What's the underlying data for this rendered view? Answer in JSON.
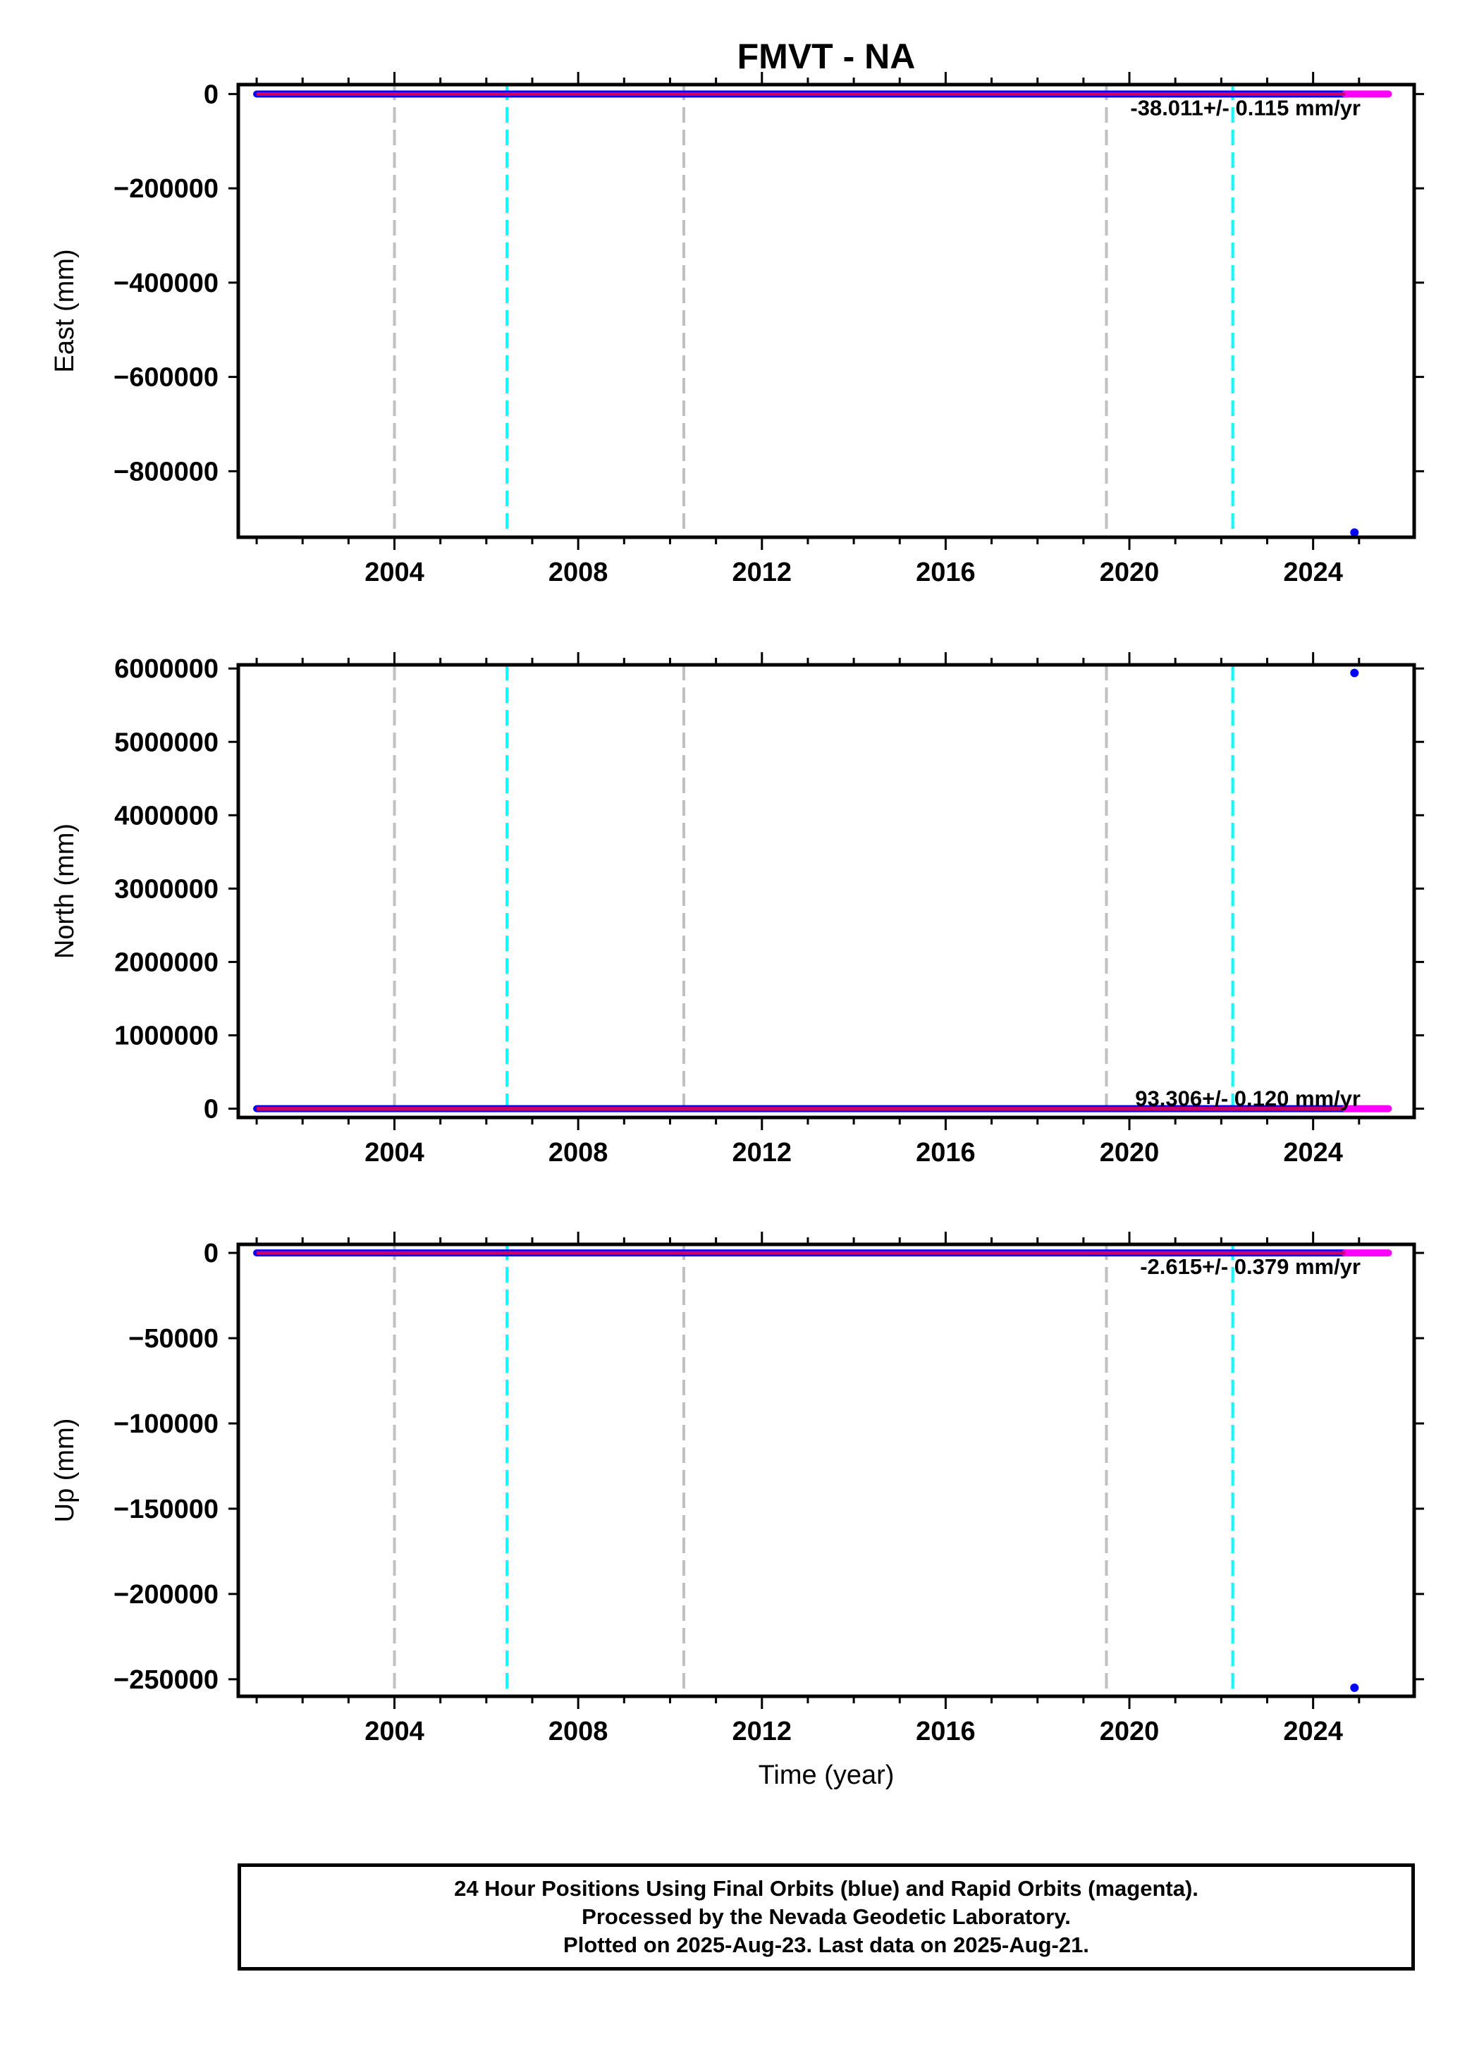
{
  "title": "FMVT - NA",
  "colors": {
    "final_orbits": "#0000ff",
    "rapid_orbits": "#ff00ff",
    "overlap": "#cc0066",
    "equipment_change": "#c0c0c0",
    "event": "#00ffff"
  },
  "chart_data": [
    {
      "type": "scatter",
      "panel": "east",
      "ylabel": "East (mm)",
      "xlabel": "",
      "rate_text": "-38.011+/- 0.115 mm/yr",
      "ylim": [
        -940000,
        20000
      ],
      "xlim": [
        2000.6,
        2026.2
      ],
      "yticks": [
        0,
        -200000,
        -400000,
        -600000,
        -800000
      ],
      "ytick_labels": [
        "0",
        "−200000",
        "−400000",
        "−600000",
        "−800000"
      ],
      "xticks": [
        2004,
        2008,
        2012,
        2016,
        2020,
        2024
      ],
      "series": [
        {
          "color": "final_orbits",
          "x_range": [
            2001.0,
            2024.7
          ],
          "y": 0
        },
        {
          "color": "rapid_orbits",
          "x_range": [
            2024.7,
            2025.64
          ],
          "y": 0
        }
      ],
      "outliers": [
        {
          "x": 2024.9,
          "y": -930000
        }
      ],
      "grey_lines": [
        2004.0,
        2010.3,
        2019.5
      ],
      "cyan_lines": [
        2006.45,
        2022.25
      ]
    },
    {
      "type": "scatter",
      "panel": "north",
      "ylabel": "North (mm)",
      "xlabel": "",
      "rate_text": "93.306+/- 0.120 mm/yr",
      "ylim": [
        -120000,
        6050000
      ],
      "xlim": [
        2000.6,
        2026.2
      ],
      "yticks": [
        0,
        1000000,
        2000000,
        3000000,
        4000000,
        5000000,
        6000000
      ],
      "ytick_labels": [
        "0",
        "1000000",
        "2000000",
        "3000000",
        "4000000",
        "5000000",
        "6000000"
      ],
      "xticks": [
        2004,
        2008,
        2012,
        2016,
        2020,
        2024
      ],
      "series": [
        {
          "color": "final_orbits",
          "x_range": [
            2001.0,
            2024.7
          ],
          "y": 0
        },
        {
          "color": "rapid_orbits",
          "x_range": [
            2024.7,
            2025.64
          ],
          "y": 0
        }
      ],
      "outliers": [
        {
          "x": 2024.9,
          "y": 5940000
        }
      ],
      "grey_lines": [
        2004.0,
        2010.3,
        2019.5
      ],
      "cyan_lines": [
        2006.45,
        2022.25
      ]
    },
    {
      "type": "scatter",
      "panel": "up",
      "ylabel": "Up (mm)",
      "xlabel": "Time (year)",
      "rate_text": "-2.615+/- 0.379 mm/yr",
      "ylim": [
        -260000,
        5000
      ],
      "xlim": [
        2000.6,
        2026.2
      ],
      "yticks": [
        0,
        -50000,
        -100000,
        -150000,
        -200000,
        -250000
      ],
      "ytick_labels": [
        "0",
        "−50000",
        "−100000",
        "−150000",
        "−200000",
        "−250000"
      ],
      "xticks": [
        2004,
        2008,
        2012,
        2016,
        2020,
        2024
      ],
      "series": [
        {
          "color": "final_orbits",
          "x_range": [
            2001.0,
            2024.7
          ],
          "y": 0
        },
        {
          "color": "rapid_orbits",
          "x_range": [
            2024.7,
            2025.64
          ],
          "y": 0
        }
      ],
      "outliers": [
        {
          "x": 2024.9,
          "y": -255000
        }
      ],
      "grey_lines": [
        2004.0,
        2010.3,
        2019.5
      ],
      "cyan_lines": [
        2006.45,
        2022.25
      ]
    }
  ],
  "footer": {
    "line1": "24 Hour Positions Using Final Orbits (blue) and Rapid Orbits (magenta).",
    "line2": "Processed by the Nevada Geodetic Laboratory.",
    "line3": "Plotted on 2025-Aug-23. Last data on 2025-Aug-21."
  }
}
